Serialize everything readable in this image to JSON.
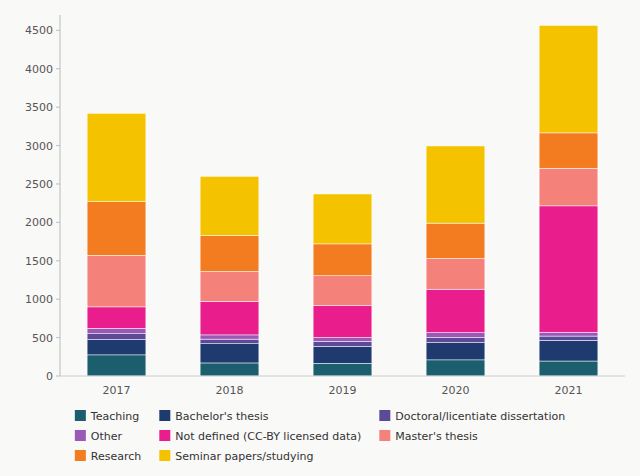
{
  "chart_data": {
    "type": "bar",
    "stacked": true,
    "categories": [
      "2017",
      "2018",
      "2019",
      "2020",
      "2021"
    ],
    "series": [
      {
        "name": "Teaching",
        "color": "#1b5e6e",
        "values": [
          275,
          170,
          165,
          210,
          195
        ]
      },
      {
        "name": "Bachelor's thesis",
        "color": "#1e3a6e",
        "values": [
          200,
          250,
          220,
          225,
          270
        ]
      },
      {
        "name": "Doctoral/licentiate dissertation",
        "color": "#5c4a96",
        "values": [
          75,
          60,
          65,
          65,
          55
        ]
      },
      {
        "name": "Other",
        "color": "#9b59b6",
        "values": [
          70,
          55,
          50,
          65,
          50
        ]
      },
      {
        "name": "Not defined (CC-BY licensed data)",
        "color": "#e91e8c",
        "values": [
          280,
          435,
          415,
          565,
          1645
        ]
      },
      {
        "name": "Master's thesis",
        "color": "#f4827a",
        "values": [
          670,
          390,
          390,
          400,
          490
        ]
      },
      {
        "name": "Research",
        "color": "#f47c20",
        "values": [
          700,
          470,
          415,
          460,
          460
        ]
      },
      {
        "name": "Seminar papers/studying",
        "color": "#f5c200",
        "values": [
          1150,
          770,
          650,
          1005,
          1400
        ]
      }
    ],
    "ylim": [
      0,
      4700
    ],
    "yticks": [
      0,
      500,
      1000,
      1500,
      2000,
      2500,
      3000,
      3500,
      4000,
      4500
    ],
    "grid": false,
    "legend": "bottom"
  }
}
